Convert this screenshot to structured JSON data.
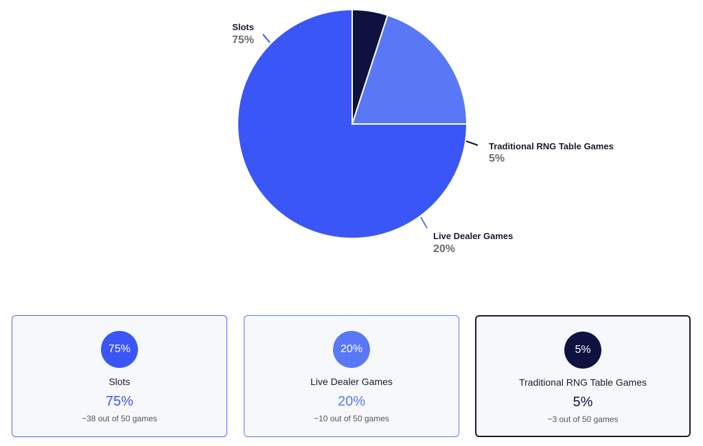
{
  "chart_data": {
    "type": "pie",
    "title": "",
    "start_angle_deg": 90,
    "direction": "counterclockwise",
    "slices": [
      {
        "label": "Slots",
        "value": 75,
        "display": "75%",
        "color": "#3a56f7"
      },
      {
        "label": "Live Dealer Games",
        "value": 20,
        "display": "20%",
        "color": "#5878f6"
      },
      {
        "label": "Traditional RNG Table Games",
        "value": 5,
        "display": "5%",
        "color": "#0f1140"
      }
    ],
    "slice_border_color": "#ffffff",
    "label_percent_color": "#6b6b6b"
  },
  "cards": [
    {
      "badge": "75%",
      "name": "Slots",
      "percent": "75%",
      "count": "~38 out of 50 games",
      "badge_color": "#3a56f7",
      "percent_color": "#3a56f7",
      "border_color": "#4a66f2"
    },
    {
      "badge": "20%",
      "name": "Live Dealer Games",
      "percent": "20%",
      "count": "~10 out of 50 games",
      "badge_color": "#5878f6",
      "percent_color": "#5878f6",
      "border_color": "#5b79ee"
    },
    {
      "badge": "5%",
      "name": "Traditional RNG Table Games",
      "percent": "5%",
      "count": "~3 out of 50 games",
      "badge_color": "#0f1140",
      "percent_color": "#0f1140",
      "border_color": "#141833"
    }
  ]
}
